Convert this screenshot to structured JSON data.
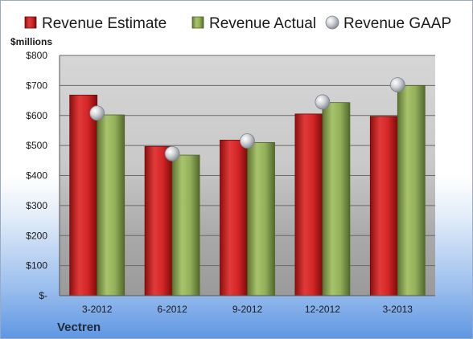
{
  "chart_data": {
    "type": "bar",
    "title": "",
    "company": "Vectren",
    "unit_label": "$millions",
    "categories": [
      "3-2012",
      "6-2012",
      "9-2012",
      "12-2012",
      "3-2013"
    ],
    "series": [
      {
        "name": "Revenue Estimate",
        "kind": "bar",
        "color": "#cc1f1f",
        "values": [
          668,
          497,
          518,
          605,
          597
        ]
      },
      {
        "name": "Revenue Actual",
        "kind": "bar",
        "color": "#8ba652",
        "values": [
          602,
          468,
          510,
          643,
          700
        ]
      },
      {
        "name": "Revenue GAAP",
        "kind": "marker",
        "color": "#b8bcc4",
        "values": [
          608,
          473,
          515,
          645,
          702
        ]
      }
    ],
    "ylim": [
      0,
      800
    ],
    "yticks": [
      0,
      100,
      200,
      300,
      400,
      500,
      600,
      700,
      800
    ],
    "ytick_labels": [
      "$-",
      "$100",
      "$200",
      "$300",
      "$400",
      "$500",
      "$600",
      "$700",
      "$800"
    ],
    "grid": true,
    "legend_position": "top"
  }
}
